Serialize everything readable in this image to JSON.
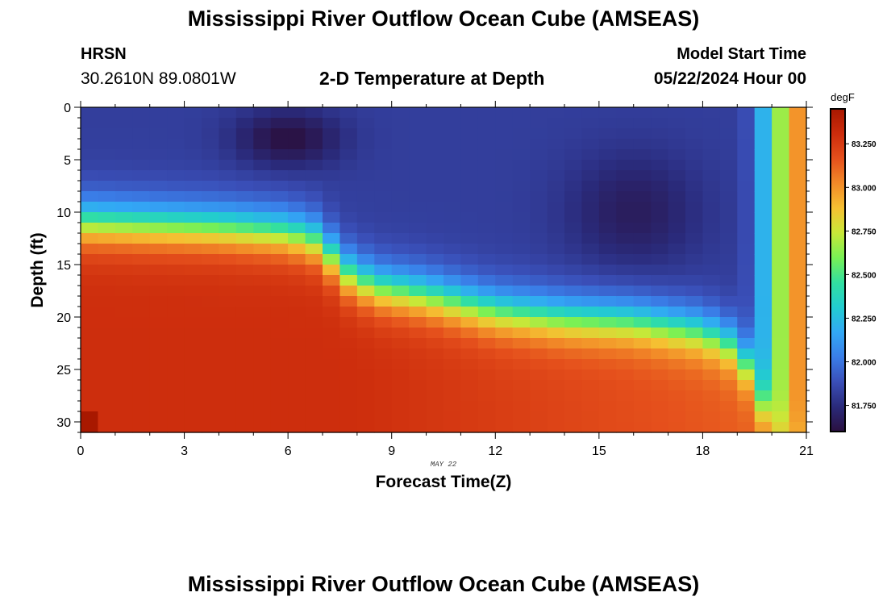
{
  "header": {
    "title": "Mississippi River Outflow Ocean Cube (AMSEAS)",
    "station": "HRSN",
    "coords": "30.2610N  89.0801W",
    "subtitle": "2-D Temperature at Depth",
    "model_start_label": "Model Start Time",
    "model_start_value": "05/22/2024 Hour 00"
  },
  "footer": {
    "title": "Mississippi River Outflow Ocean Cube (AMSEAS)"
  },
  "chart_data": {
    "type": "heatmap",
    "title": "2-D Temperature at Depth",
    "xlabel": "Forecast Time(Z)",
    "ylabel": "Depth (ft)",
    "x_ticks": [
      "0",
      "3",
      "6",
      "9",
      "12",
      "15",
      "18",
      "21"
    ],
    "y_ticks": [
      "0",
      "5",
      "10",
      "15",
      "20",
      "25",
      "30"
    ],
    "date_label": "MAY 22",
    "xlim": [
      0,
      21
    ],
    "ylim": [
      0,
      31
    ],
    "y_inverted": true,
    "colorbar": {
      "unit": "degF",
      "vmin": 81.6,
      "vmax": 83.45,
      "ticks": [
        "81.750",
        "82.000",
        "82.250",
        "82.500",
        "82.750",
        "83.000",
        "83.250"
      ],
      "colors": [
        "#2a1040",
        "#2a2a7a",
        "#3a4fb8",
        "#3a7ee8",
        "#32a8f5",
        "#22ccd0",
        "#32e0a0",
        "#78f055",
        "#c8e838",
        "#f5c032",
        "#f28a28",
        "#e5501c",
        "#cc2c0c",
        "#a81800"
      ]
    },
    "thermocline": [
      {
        "t": 0,
        "d": 11.0
      },
      {
        "t": 4,
        "d": 11.5
      },
      {
        "t": 6,
        "d": 12.0
      },
      {
        "t": 7,
        "d": 13.0
      },
      {
        "t": 7.5,
        "d": 15.5
      },
      {
        "t": 8.5,
        "d": 17.2
      },
      {
        "t": 10,
        "d": 18.0
      },
      {
        "t": 12,
        "d": 19.5
      },
      {
        "t": 14,
        "d": 20.2
      },
      {
        "t": 16,
        "d": 20.5
      },
      {
        "t": 18,
        "d": 21.5
      },
      {
        "t": 19,
        "d": 23.0
      },
      {
        "t": 19.5,
        "d": 26.0
      },
      {
        "t": 20,
        "d": 31.0
      }
    ],
    "summary": {
      "surface_minimum": {
        "t": 6,
        "d": 3,
        "value": 81.6
      },
      "surface_secondary_minimum": {
        "t": 16,
        "d": 10,
        "value": 81.72
      },
      "deep_maximum": {
        "value": 83.3
      },
      "late_surface_warming_start": 19
    }
  }
}
